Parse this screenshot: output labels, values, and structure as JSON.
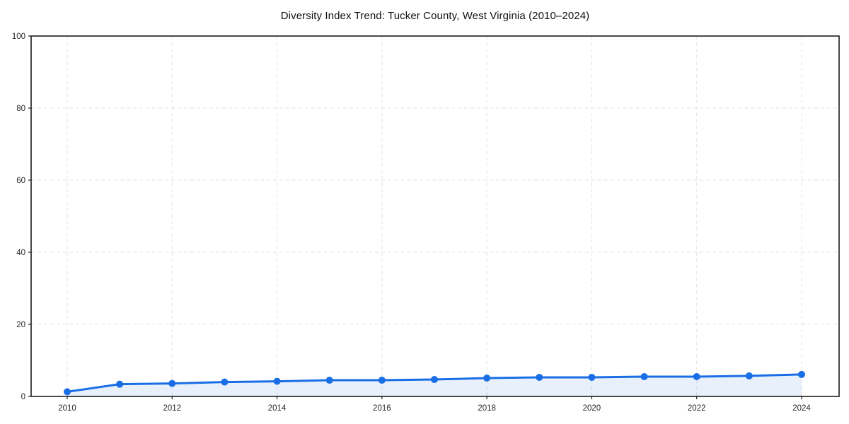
{
  "chart_data": {
    "type": "line",
    "title": "Diversity Index Trend: Tucker County, West Virginia (2010–2024)",
    "x": [
      2010,
      2011,
      2012,
      2013,
      2014,
      2015,
      2016,
      2017,
      2018,
      2019,
      2020,
      2021,
      2022,
      2023,
      2024
    ],
    "series": [
      {
        "name": "Diversity Index",
        "values": [
          1.3,
          3.4,
          3.6,
          4.0,
          4.2,
          4.5,
          4.5,
          4.7,
          5.1,
          5.3,
          5.3,
          5.5,
          5.5,
          5.7,
          6.1
        ]
      }
    ],
    "xlabel": "",
    "ylabel": "",
    "ylim": [
      0,
      100
    ],
    "xticks": [
      2010,
      2012,
      2014,
      2016,
      2018,
      2020,
      2022,
      2024
    ],
    "yticks": [
      0,
      20,
      40,
      60,
      80,
      100
    ],
    "grid": "dashed, horizontal and vertical at major ticks",
    "legend_position": "none",
    "marker": "circle",
    "area_fill": true,
    "colors": {
      "line": "#1a6ee5",
      "marker": "#1a6ee5",
      "area_fill": "rgba(26,110,229,0.10)",
      "grid": "#e3e3e3",
      "spine": "#1c1c1c",
      "tick_label": "#262626",
      "title": "#111111",
      "background": "#ffffff"
    }
  }
}
